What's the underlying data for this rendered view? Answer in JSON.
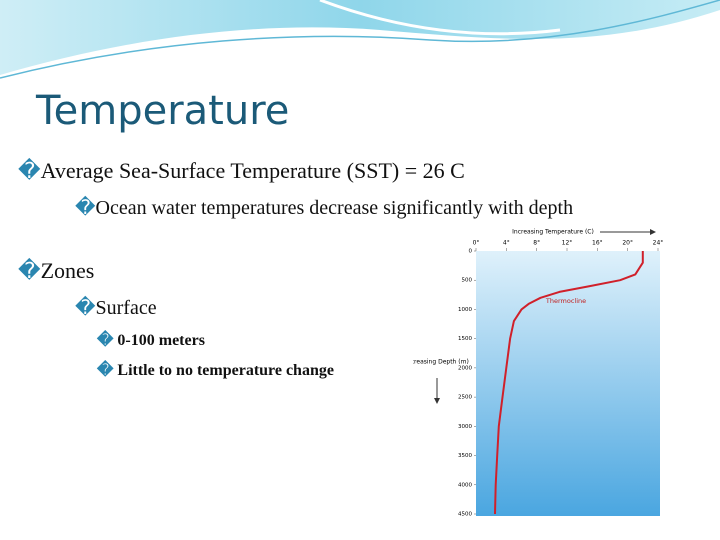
{
  "slide": {
    "title": "Temperature",
    "items": [
      {
        "bullet": "�",
        "text": "Average Sea-Surface Temperature (SST) = 26 C"
      },
      {
        "bullet": "�",
        "text": "Ocean water temperatures decrease significantly with depth"
      },
      {
        "bullet": "�",
        "text": "Zones"
      },
      {
        "bullet": "�",
        "text": "Surface"
      },
      {
        "bullet": "�",
        "text": "0-100 meters"
      },
      {
        "bullet": "�",
        "text": "Little to no temperature change"
      }
    ]
  },
  "chart_data": {
    "type": "line",
    "xlabel": "Increasing Temperature (C)",
    "ylabel": "Increasing Depth (m)",
    "annotation": "Thermocline",
    "x": [
      0,
      200,
      400,
      500,
      600,
      700,
      800,
      900,
      1000,
      1200,
      1500,
      2000,
      2500,
      3000,
      3500,
      4000,
      4500
    ],
    "series": [
      {
        "name": "Temperature",
        "color": "#d0202a",
        "values": [
          22,
          22,
          21,
          19,
          15,
          11,
          8.5,
          7,
          6,
          5,
          4.5,
          4,
          3.5,
          3,
          2.8,
          2.6,
          2.5
        ]
      }
    ],
    "xlim": [
      0,
      24
    ],
    "xticks": [
      {
        "value": 0,
        "label": "0°"
      },
      {
        "value": 4,
        "label": "4°"
      },
      {
        "value": 8,
        "label": "8°"
      },
      {
        "value": 12,
        "label": "12°"
      },
      {
        "value": 16,
        "label": "16°"
      },
      {
        "value": 20,
        "label": "20°"
      },
      {
        "value": 24,
        "label": "24°"
      }
    ],
    "ylim": [
      0,
      4500
    ],
    "yticks": [
      0,
      500,
      1000,
      1500,
      2000,
      2500,
      3000,
      3500,
      4000,
      4500
    ]
  }
}
